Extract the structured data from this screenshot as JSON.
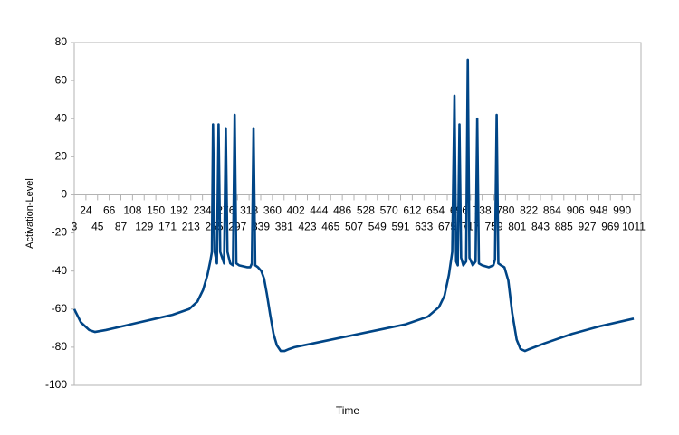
{
  "chart_data": {
    "type": "line",
    "x_label": "Time",
    "y_label": "Activation-Level",
    "xlim": [
      3,
      1024
    ],
    "ylim": [
      -100,
      80
    ],
    "yticks": [
      -100,
      -80,
      -60,
      -40,
      -20,
      0,
      20,
      40,
      60,
      80
    ],
    "xticks": [
      3,
      24,
      45,
      66,
      87,
      108,
      129,
      150,
      171,
      192,
      213,
      234,
      255,
      276,
      297,
      318,
      339,
      360,
      381,
      402,
      423,
      444,
      465,
      486,
      507,
      528,
      549,
      570,
      591,
      612,
      633,
      654,
      675,
      696,
      717,
      738,
      759,
      780,
      801,
      822,
      843,
      864,
      885,
      906,
      927,
      948,
      969,
      990,
      1011
    ],
    "grid": false,
    "series": [
      {
        "name": "Activation-Level",
        "color": "#004586",
        "x": [
          3,
          15,
          30,
          40,
          60,
          90,
          120,
          150,
          180,
          210,
          225,
          235,
          243,
          248,
          251,
          253,
          256,
          260,
          263,
          266,
          273,
          276,
          279,
          284,
          289,
          292,
          295,
          300,
          315,
          320,
          323,
          326,
          329,
          334,
          340,
          345,
          350,
          356,
          362,
          368,
          375,
          382,
          390,
          400,
          450,
          500,
          550,
          600,
          640,
          660,
          670,
          678,
          684,
          688,
          691,
          694,
          697,
          700,
          704,
          709,
          712,
          715,
          721,
          726,
          729,
          732,
          738,
          750,
          758,
          761,
          764,
          767,
          772,
          778,
          785,
          792,
          800,
          807,
          815,
          823,
          850,
          900,
          950,
          1011
        ],
        "values": [
          -60,
          -67,
          -71,
          -72,
          -71,
          -69,
          -67,
          -65,
          -63,
          -60,
          -56,
          -50,
          -42,
          -35,
          -30,
          37,
          -30,
          -36,
          37,
          -30,
          -36,
          35,
          -30,
          -36,
          -37,
          42,
          -36,
          -37,
          -38,
          -38,
          -36,
          35,
          -37,
          -38,
          -40,
          -44,
          -52,
          -63,
          -73,
          -79,
          -82,
          -82,
          -81,
          -80,
          -77,
          -74,
          -71,
          -68,
          -64,
          -59,
          -53,
          -42,
          -30,
          52,
          -35,
          -37,
          37,
          -33,
          -37,
          -35,
          71,
          -33,
          -37,
          -35,
          40,
          -36,
          -37,
          -38,
          -37,
          -34,
          42,
          -36,
          -37,
          -38,
          -45,
          -62,
          -76,
          -81,
          -82,
          -81,
          -78,
          -73,
          -69,
          -65
        ]
      }
    ]
  }
}
